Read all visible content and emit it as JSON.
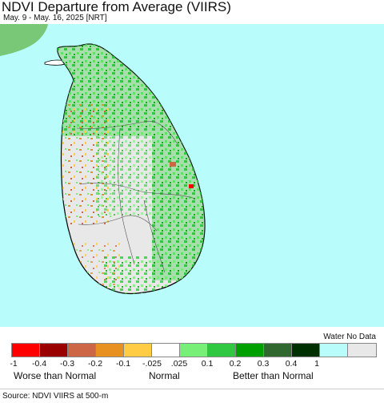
{
  "header": {
    "title": "NDVI Departure from Average (VIIRS)",
    "subtitle": "May. 9 - May. 16, 2025 [NRT]"
  },
  "map": {
    "region": "Sri Lanka",
    "water_color": "#b8fcfc",
    "land_base_color": "#e8e8e8",
    "green_color": "#3cc83c",
    "light_green_color": "#78f078",
    "orange_color": "#f0a020"
  },
  "legend": {
    "water_no_data": "Water No Data",
    "colors": [
      "#ff0000",
      "#9b0000",
      "#cc6644",
      "#e89020",
      "#ffcc44",
      "#ffffff",
      "#78f078",
      "#30c840",
      "#00a000",
      "#306830",
      "#003000",
      "#b8fcfc",
      "#e8e8e8"
    ],
    "ticks": [
      "-1",
      "-0.4",
      "-0.3",
      "-0.2",
      "-0.1",
      "-.025",
      ".025",
      "0.1",
      "0.2",
      "0.3",
      "0.4",
      "1"
    ],
    "worse_label": "Worse than Normal",
    "normal_label": "Normal",
    "better_label": "Better than Normal"
  },
  "footer": {
    "source": "Source: NDVI VIIRS at 500-m"
  }
}
